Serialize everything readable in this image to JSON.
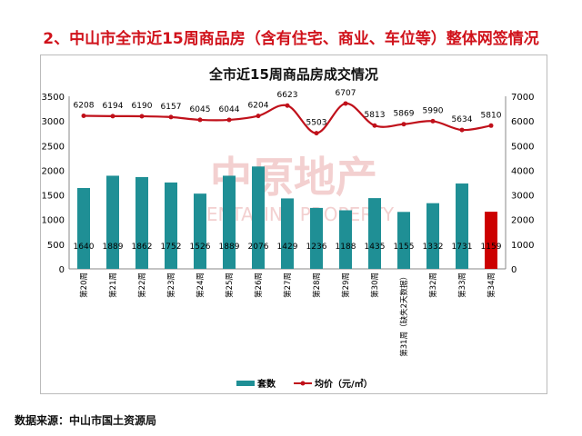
{
  "page_title": "2、中山市全市近15周商品房（含有住宅、商业、车位等）整体网签情况",
  "source": "数据来源：中山市国土资源局",
  "watermark": "中原地产 CENTALINE PROPERTY",
  "chart_data": {
    "type": "bar+line",
    "title": "全市近15周商品房成交情况",
    "categories": [
      "第20周",
      "第21周",
      "第22周",
      "第23周",
      "第24周",
      "第25周",
      "第26周",
      "第27周",
      "第28周",
      "第29周",
      "第30周",
      "第31周（缺失2天数据）",
      "第32周",
      "第33周",
      "第34周"
    ],
    "left_axis": {
      "range": [
        0,
        3500
      ],
      "ticks": [
        0,
        500,
        1000,
        1500,
        2000,
        2500,
        3000,
        3500
      ]
    },
    "right_axis": {
      "range": [
        0,
        7000
      ],
      "ticks": [
        0,
        1000,
        2000,
        3000,
        4000,
        5000,
        6000,
        7000
      ]
    },
    "series": [
      {
        "name": "套数",
        "type": "bar",
        "axis": "left",
        "color": "#1f8f95",
        "highlight_last_color": "#cc0000",
        "values": [
          1640,
          1889,
          1862,
          1752,
          1526,
          1889,
          2076,
          1429,
          1236,
          1188,
          1435,
          1155,
          1332,
          1731,
          1159
        ]
      },
      {
        "name": "均价（元/㎡）",
        "type": "line",
        "axis": "right",
        "color": "#c0101a",
        "values": [
          6208,
          6194,
          6190,
          6157,
          6045,
          6044,
          6204,
          6623,
          5503,
          6707,
          5813,
          5869,
          5990,
          5634,
          5810
        ]
      }
    ],
    "legend": "bottom"
  }
}
